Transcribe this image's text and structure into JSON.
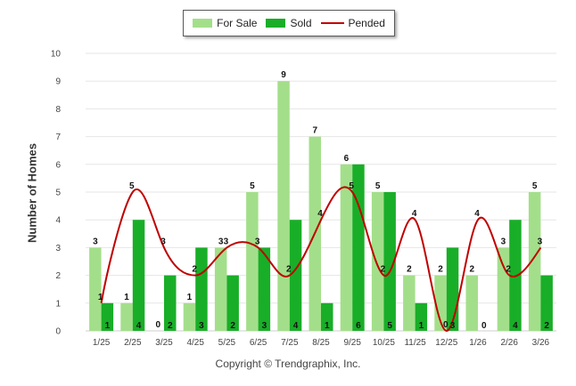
{
  "chart_data": {
    "type": "bar",
    "title": "",
    "xlabel": "",
    "ylabel": "Number of Homes",
    "ylim": [
      0,
      10
    ],
    "yticks": [
      "0",
      "1",
      "2",
      "3",
      "4",
      "5",
      "6",
      "7",
      "8",
      "9",
      "10"
    ],
    "categories": [
      "1/25",
      "2/25",
      "3/25",
      "4/25",
      "5/25",
      "6/25",
      "7/25",
      "8/25",
      "9/25",
      "10/25",
      "11/25",
      "12/25",
      "1/26",
      "2/26",
      "3/26"
    ],
    "series": [
      {
        "name": "For Sale",
        "type": "bar",
        "color": "#a3df8a",
        "values": [
          3,
          1,
          0,
          1,
          3,
          5,
          9,
          7,
          6,
          5,
          2,
          2,
          2,
          3,
          5
        ]
      },
      {
        "name": "Sold",
        "type": "bar",
        "color": "#19ae28",
        "values": [
          1,
          4,
          2,
          3,
          2,
          3,
          4,
          1,
          6,
          5,
          1,
          3,
          0,
          4,
          2
        ]
      },
      {
        "name": "Pended",
        "type": "line",
        "color": "#c00000",
        "values": [
          1,
          5,
          3,
          2,
          3,
          3,
          2,
          4,
          5,
          2,
          4,
          0,
          4,
          2,
          3
        ]
      }
    ],
    "legend": "top-center",
    "grid": true
  },
  "footer": {
    "copyright": "Copyright © Trendgraphix, Inc."
  }
}
